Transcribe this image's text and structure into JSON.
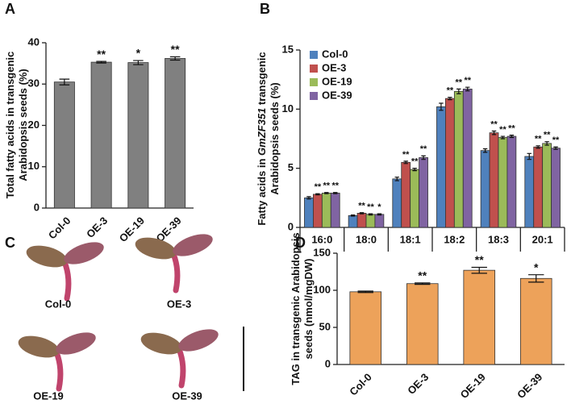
{
  "chart_data": [
    {
      "type": "bar",
      "panel_label": "A",
      "ylabel": [
        "Total fatty acids in transgenic",
        "Arabidopsis seeds (%)"
      ],
      "categories": [
        "Col-0",
        "OE-3",
        "OE-19",
        "OE-39"
      ],
      "values": [
        30.5,
        35.3,
        35.2,
        36.2
      ],
      "errors": [
        0.7,
        0.2,
        0.5,
        0.4
      ],
      "significance": [
        null,
        "**",
        "*",
        "**"
      ],
      "color": "#808080",
      "ylim": [
        0,
        40
      ],
      "yticks": [
        0,
        10,
        20,
        30,
        40
      ]
    },
    {
      "type": "grouped-bar",
      "panel_label": "B",
      "ylabel_parts": [
        "Fatty acids in ",
        "GmZF351",
        " transgenic"
      ],
      "ylabel_line2": "Arabidopsis seeds (%)",
      "categories": [
        "16:0",
        "18:0",
        "18:1",
        "18:2",
        "18:3",
        "20:1"
      ],
      "series": [
        {
          "name": "Col-0",
          "color": "#4f81bd",
          "values": [
            2.5,
            1.0,
            4.1,
            10.2,
            6.5,
            6.0
          ],
          "errors": [
            0.1,
            0.05,
            0.15,
            0.3,
            0.15,
            0.25
          ],
          "significance": [
            null,
            null,
            null,
            null,
            null,
            null
          ]
        },
        {
          "name": "OE-3",
          "color": "#c0504d",
          "values": [
            2.8,
            1.2,
            5.5,
            10.9,
            8.0,
            6.8
          ],
          "errors": [
            0.05,
            0.05,
            0.1,
            0.1,
            0.15,
            0.1
          ],
          "significance": [
            "**",
            "**",
            "**",
            "**",
            "**",
            "**"
          ]
        },
        {
          "name": "OE-19",
          "color": "#9bbb59",
          "values": [
            2.9,
            1.1,
            4.9,
            11.5,
            7.6,
            7.1
          ],
          "errors": [
            0.05,
            0.05,
            0.1,
            0.2,
            0.1,
            0.15
          ],
          "significance": [
            "**",
            "**",
            "**",
            "**",
            "**",
            "**"
          ]
        },
        {
          "name": "OE-39",
          "color": "#8064a2",
          "values": [
            2.9,
            1.1,
            5.9,
            11.7,
            7.7,
            6.7
          ],
          "errors": [
            0.05,
            0.05,
            0.15,
            0.15,
            0.1,
            0.1
          ],
          "significance": [
            "**",
            "*",
            "**",
            "**",
            "**",
            "**"
          ]
        }
      ],
      "ylim": [
        0,
        15
      ],
      "yticks": [
        0,
        5,
        10,
        15
      ],
      "legend": "top-left"
    },
    {
      "type": "bar",
      "panel_label": "D",
      "ylabel": [
        "TAG in transgenic Arabidopsis",
        "seeds (nmol/mgDW)"
      ],
      "categories": [
        "Col-0",
        "OE-3",
        "OE-19",
        "OE-39"
      ],
      "values": [
        98,
        109,
        127,
        116
      ],
      "errors": [
        1,
        1,
        4,
        5
      ],
      "significance": [
        null,
        "**",
        "**",
        "*"
      ],
      "color": "#eda25a",
      "ylim": [
        0,
        150
      ],
      "yticks": [
        0,
        50,
        100,
        150
      ]
    }
  ],
  "images": {
    "panel_label": "C",
    "labels": [
      "Col-0",
      "OE-3",
      "OE-19",
      "OE-39"
    ]
  }
}
